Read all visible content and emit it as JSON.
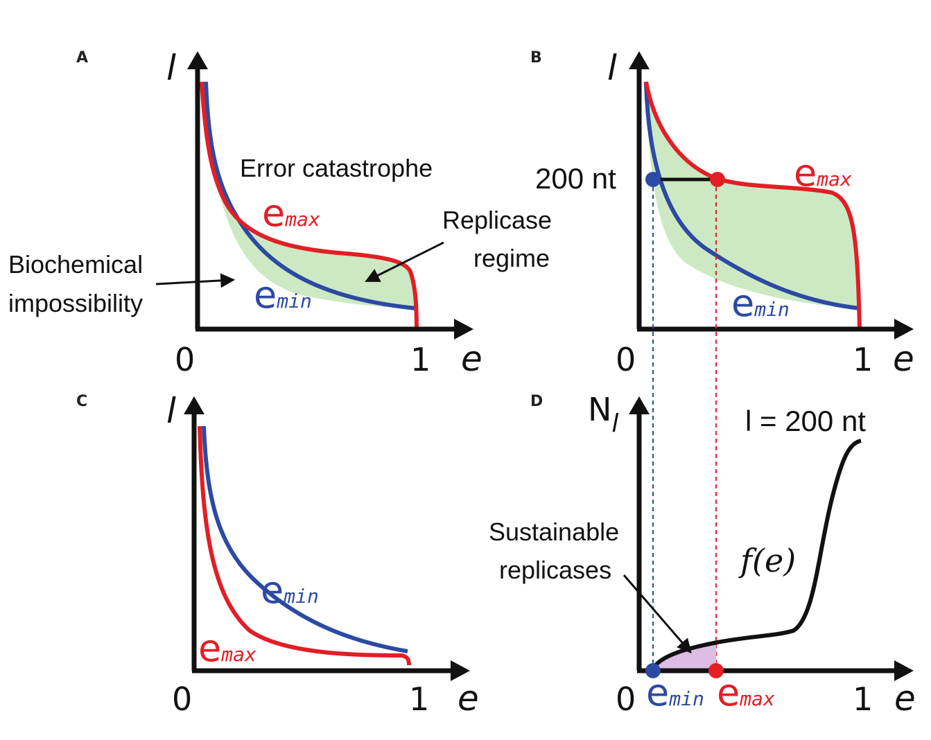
{
  "colors": {
    "emax": "#e21e26",
    "emin": "#2c4aa3",
    "fill_regime": "#cce9c3",
    "fill_sustainable": "#dcbde4",
    "axis": "#111111"
  },
  "panels": {
    "A": {
      "letter": "A",
      "y_var": "l",
      "x_var": "e",
      "x_tick_0": "0",
      "x_tick_1": "1",
      "emax_main": "e",
      "emax_sub": "max",
      "emin_main": "e",
      "emin_sub": "min",
      "error_label": "Error catastrophe",
      "replicase_line1": "Replicase",
      "replicase_line2": "regime",
      "biochem_line1": "Biochemical",
      "biochem_line2": "impossibility"
    },
    "B": {
      "letter": "B",
      "y_var": "l",
      "x_var": "e",
      "x_tick_0": "0",
      "x_tick_1": "1",
      "emax_main": "e",
      "emax_sub": "max",
      "emin_main": "e",
      "emin_sub": "min",
      "length_label": "200 nt"
    },
    "C": {
      "letter": "C",
      "y_var": "l",
      "x_var": "e",
      "x_tick_0": "0",
      "x_tick_1": "1",
      "emax_main": "e",
      "emax_sub": "max",
      "emin_main": "e",
      "emin_sub": "min"
    },
    "D": {
      "letter": "D",
      "y_var_main": "N",
      "y_var_sub": "l",
      "x_var": "e",
      "x_tick_0": "0",
      "x_tick_1": "1",
      "length_label": "l = 200 nt",
      "curve_label": "f(e)",
      "sustainable_line1": "Sustainable",
      "sustainable_line2": "replicases",
      "emin_main": "e",
      "emin_sub": "min",
      "emax_main": "e",
      "emax_sub": "max"
    }
  }
}
